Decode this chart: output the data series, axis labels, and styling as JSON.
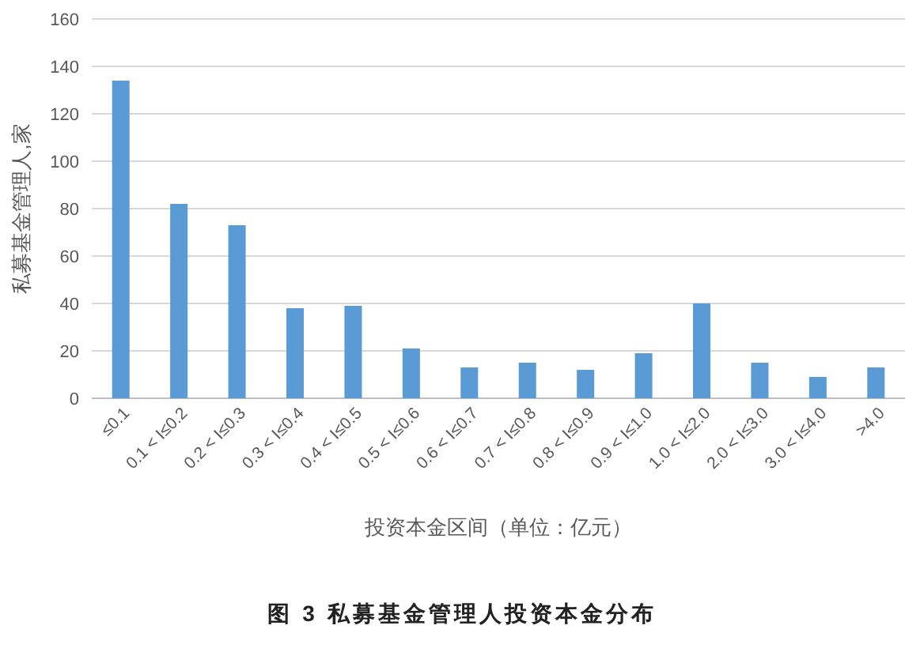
{
  "chart_data": {
    "type": "bar",
    "title": "图 3 私募基金管理人投资本金分布",
    "xlabel": "投资本金区间（单位：亿元）",
    "ylabel": "私募基金管理人,家",
    "categories": [
      "≤0.1",
      "0.1 < I≤0.2",
      "0.2 < I≤0.3",
      "0.3 < I≤0.4",
      "0.4 < I≤0.5",
      "0.5 < I≤0.6",
      "0.6 < I≤0.7",
      "0.7 < I≤0.8",
      "0.8 < I≤0.9",
      "0.9 < I≤1.0",
      "1.0 < I≤2.0",
      "2.0 < I≤3.0",
      "3.0 < I≤4.0",
      ">4.0"
    ],
    "values": [
      134,
      82,
      73,
      38,
      39,
      21,
      13,
      15,
      12,
      19,
      40,
      15,
      9,
      13
    ],
    "color": "#5b9bd5",
    "ylim": [
      0,
      160
    ],
    "yticks": [
      0,
      20,
      40,
      60,
      80,
      100,
      120,
      140,
      160
    ],
    "grid": "y"
  }
}
